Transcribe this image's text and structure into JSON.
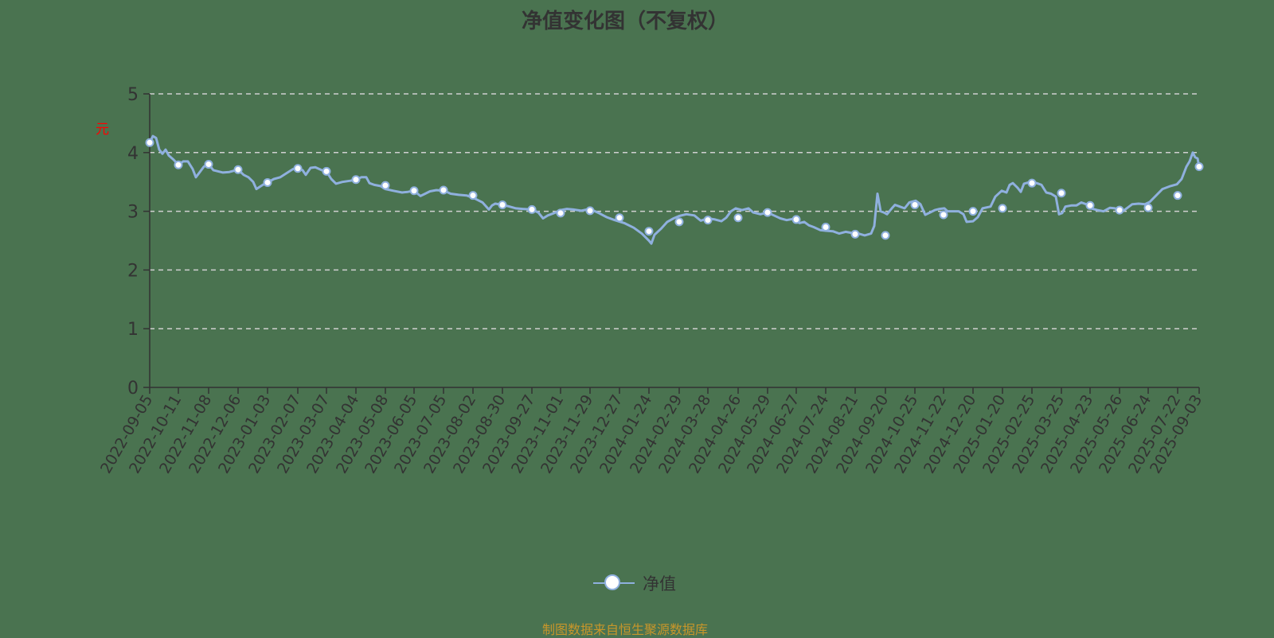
{
  "title": "净值变化图（不复权）",
  "y_unit": "元",
  "legend": {
    "label": "净值"
  },
  "source": "制图数据来自恒生聚源数据库",
  "colors": {
    "line": "#8fb0de",
    "marker_fill": "#ffffff",
    "grid": "#d0d0d0",
    "axis": "#333333",
    "source": "#c8962a",
    "unit": "#ff0000",
    "background": "#4a7350"
  },
  "chart_data": {
    "type": "line",
    "title": "净值变化图（不复权）",
    "xlabel": "",
    "ylabel": "元",
    "ylim": [
      0,
      5
    ],
    "yticks": [
      0,
      1,
      2,
      3,
      4,
      5
    ],
    "grid": true,
    "legend_position": "bottom",
    "categories": [
      "2022-09-05",
      "2022-10-11",
      "2022-11-08",
      "2022-12-06",
      "2023-01-03",
      "2023-02-07",
      "2023-03-07",
      "2023-04-04",
      "2023-05-08",
      "2023-06-05",
      "2023-07-05",
      "2023-08-02",
      "2023-08-30",
      "2023-09-27",
      "2023-11-01",
      "2023-11-29",
      "2023-12-27",
      "2024-01-24",
      "2024-02-29",
      "2024-03-28",
      "2024-04-26",
      "2024-05-29",
      "2024-06-27",
      "2024-07-24",
      "2024-08-21",
      "2024-09-20",
      "2024-10-25",
      "2024-11-22",
      "2024-12-20",
      "2025-01-20",
      "2025-02-25",
      "2025-03-25",
      "2025-04-23",
      "2025-05-26",
      "2025-06-24",
      "2025-07-22",
      "2025-09-03"
    ],
    "series": [
      {
        "name": "净值",
        "values": [
          4.17,
          3.79,
          3.8,
          3.71,
          3.49,
          3.73,
          3.68,
          3.54,
          3.44,
          3.35,
          3.36,
          3.27,
          3.11,
          3.03,
          2.97,
          3.01,
          2.89,
          2.66,
          2.82,
          2.85,
          2.89,
          2.98,
          2.86,
          2.73,
          2.61,
          2.59,
          3.11,
          2.94,
          3.0,
          3.05,
          3.48,
          3.31,
          3.1,
          3.02,
          3.06,
          3.27,
          3.76
        ]
      }
    ]
  }
}
